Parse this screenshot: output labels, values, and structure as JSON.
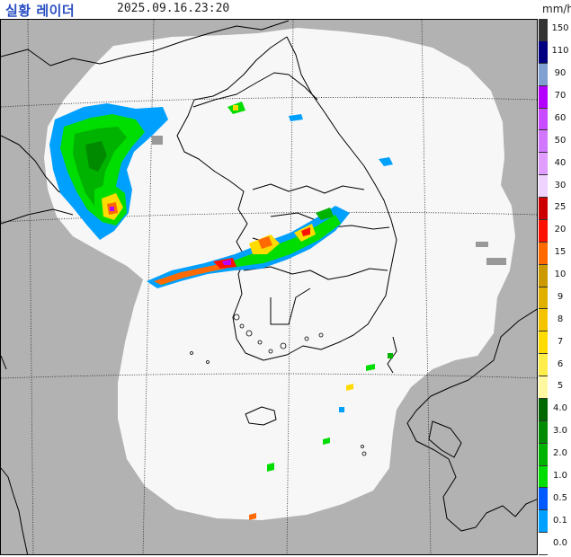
{
  "header": {
    "title": "실황 레이더",
    "timestamp": "2025.09.16.23:20",
    "unit": "mm/h"
  },
  "map": {
    "colors": {
      "land": "#b2b2b2",
      "coverage": "#f7f7f7",
      "coastline": "#000000",
      "grid": "#1a1a1a"
    },
    "icon": "radar-map"
  },
  "legend": {
    "items": [
      {
        "label": "150",
        "color": "#333333"
      },
      {
        "label": "110",
        "color": "#010080"
      },
      {
        "label": "90",
        "color": "#7fa0d0"
      },
      {
        "label": "70",
        "color": "#b400ff"
      },
      {
        "label": "60",
        "color": "#c84bff"
      },
      {
        "label": "50",
        "color": "#d277ff"
      },
      {
        "label": "40",
        "color": "#e09cff"
      },
      {
        "label": "30",
        "color": "#f0d3ff"
      },
      {
        "label": "25",
        "color": "#cc0000"
      },
      {
        "label": "20",
        "color": "#ff1100"
      },
      {
        "label": "15",
        "color": "#ff6a00"
      },
      {
        "label": "10",
        "color": "#cc9900"
      },
      {
        "label": "9",
        "color": "#e0b000"
      },
      {
        "label": "8",
        "color": "#f4c400"
      },
      {
        "label": "7",
        "color": "#ffdb00"
      },
      {
        "label": "6",
        "color": "#ffed4a"
      },
      {
        "label": "5",
        "color": "#fff8a0"
      },
      {
        "label": "4.0",
        "color": "#006600"
      },
      {
        "label": "3.0",
        "color": "#008a00"
      },
      {
        "label": "2.0",
        "color": "#00b300"
      },
      {
        "label": "1.0",
        "color": "#00dd00"
      },
      {
        "label": "0.5",
        "color": "#005aff"
      },
      {
        "label": "0.1",
        "color": "#00a0ff"
      },
      {
        "label": "0.0",
        "color": "#ffffff"
      }
    ]
  }
}
